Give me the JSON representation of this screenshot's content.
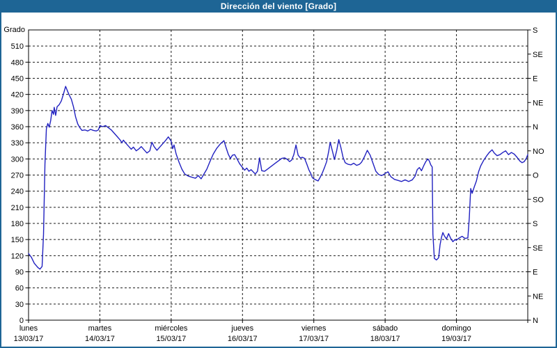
{
  "window": {
    "title": "Dirección del viento [Grado]"
  },
  "colors": {
    "titlebar_bg": "#1e6595",
    "title_text": "#ffffff",
    "border": "#1e6595",
    "background": "#ffffff",
    "frame": "#000000",
    "grid": "#1a1a1a",
    "line": "#2020c0"
  },
  "chart_data": {
    "type": "line",
    "title": "Dirección del viento [Grado]",
    "grid": {
      "style": "dashed",
      "h_step_deg": 30,
      "v_lines": "day boundaries"
    },
    "legend": "none",
    "y_left": {
      "label": "Grado",
      "min": 0,
      "max": 540,
      "tick_step": 30,
      "tick_labels": [
        0,
        30,
        60,
        90,
        120,
        150,
        180,
        210,
        240,
        270,
        300,
        330,
        360,
        390,
        420,
        450,
        480,
        510
      ]
    },
    "y_right": {
      "tick_step": 45,
      "labels": [
        {
          "value": 0,
          "label": "N"
        },
        {
          "value": 45,
          "label": "NE"
        },
        {
          "value": 90,
          "label": "E"
        },
        {
          "value": 135,
          "label": "SE"
        },
        {
          "value": 180,
          "label": "S"
        },
        {
          "value": 225,
          "label": "SO"
        },
        {
          "value": 270,
          "label": "O"
        },
        {
          "value": 315,
          "label": "NO"
        },
        {
          "value": 360,
          "label": "N"
        },
        {
          "value": 405,
          "label": "NE"
        },
        {
          "value": 450,
          "label": "E"
        },
        {
          "value": 495,
          "label": "SE"
        },
        {
          "value": 540,
          "label": "S"
        }
      ]
    },
    "x_axis": {
      "days": [
        {
          "name": "lunes",
          "date": "13/03/17"
        },
        {
          "name": "martes",
          "date": "14/03/17"
        },
        {
          "name": "miércoles",
          "date": "15/03/17"
        },
        {
          "name": "jueves",
          "date": "16/03/17"
        },
        {
          "name": "viernes",
          "date": "17/03/17"
        },
        {
          "name": "sábado",
          "date": "18/03/17"
        },
        {
          "name": "domingo",
          "date": "19/03/17"
        }
      ]
    },
    "series": [
      {
        "name": "Dirección del viento",
        "unit": "Grado",
        "color": "#2020c0",
        "points": [
          [
            0.0,
            124
          ],
          [
            0.04,
            117
          ],
          [
            0.08,
            106
          ],
          [
            0.13,
            98
          ],
          [
            0.16,
            95
          ],
          [
            0.19,
            100
          ],
          [
            0.21,
            160
          ],
          [
            0.23,
            290
          ],
          [
            0.25,
            356
          ],
          [
            0.27,
            366
          ],
          [
            0.29,
            359
          ],
          [
            0.31,
            371
          ],
          [
            0.33,
            390
          ],
          [
            0.35,
            383
          ],
          [
            0.36,
            396
          ],
          [
            0.38,
            381
          ],
          [
            0.4,
            397
          ],
          [
            0.43,
            401
          ],
          [
            0.46,
            408
          ],
          [
            0.49,
            421
          ],
          [
            0.52,
            435
          ],
          [
            0.55,
            425
          ],
          [
            0.57,
            419
          ],
          [
            0.6,
            411
          ],
          [
            0.63,
            397
          ],
          [
            0.66,
            378
          ],
          [
            0.69,
            365
          ],
          [
            0.72,
            358
          ],
          [
            0.75,
            353
          ],
          [
            0.79,
            354
          ],
          [
            0.83,
            352
          ],
          [
            0.87,
            355
          ],
          [
            0.91,
            353
          ],
          [
            0.95,
            352
          ],
          [
            0.98,
            354
          ],
          [
            1.0,
            362
          ],
          [
            1.04,
            360
          ],
          [
            1.08,
            362
          ],
          [
            1.12,
            358
          ],
          [
            1.16,
            354
          ],
          [
            1.2,
            348
          ],
          [
            1.24,
            342
          ],
          [
            1.28,
            336
          ],
          [
            1.31,
            330
          ],
          [
            1.33,
            335
          ],
          [
            1.36,
            330
          ],
          [
            1.4,
            324
          ],
          [
            1.44,
            318
          ],
          [
            1.47,
            322
          ],
          [
            1.51,
            315
          ],
          [
            1.55,
            319
          ],
          [
            1.58,
            323
          ],
          [
            1.62,
            317
          ],
          [
            1.66,
            311
          ],
          [
            1.7,
            315
          ],
          [
            1.73,
            331
          ],
          [
            1.76,
            323
          ],
          [
            1.8,
            316
          ],
          [
            1.84,
            322
          ],
          [
            1.88,
            328
          ],
          [
            1.92,
            334
          ],
          [
            1.96,
            341
          ],
          [
            2.0,
            333
          ],
          [
            2.02,
            319
          ],
          [
            2.04,
            326
          ],
          [
            2.07,
            309
          ],
          [
            2.11,
            294
          ],
          [
            2.15,
            281
          ],
          [
            2.19,
            272
          ],
          [
            2.24,
            268
          ],
          [
            2.29,
            266
          ],
          [
            2.34,
            264
          ],
          [
            2.38,
            269
          ],
          [
            2.42,
            263
          ],
          [
            2.46,
            272
          ],
          [
            2.5,
            281
          ],
          [
            2.54,
            294
          ],
          [
            2.59,
            309
          ],
          [
            2.64,
            320
          ],
          [
            2.69,
            328
          ],
          [
            2.74,
            334
          ],
          [
            2.77,
            321
          ],
          [
            2.8,
            309
          ],
          [
            2.83,
            301
          ],
          [
            2.86,
            307
          ],
          [
            2.89,
            308
          ],
          [
            2.92,
            301
          ],
          [
            2.96,
            291
          ],
          [
            3.0,
            284
          ],
          [
            3.03,
            279
          ],
          [
            3.06,
            283
          ],
          [
            3.09,
            277
          ],
          [
            3.12,
            280
          ],
          [
            3.15,
            276
          ],
          [
            3.18,
            272
          ],
          [
            3.21,
            277
          ],
          [
            3.24,
            302
          ],
          [
            3.27,
            278
          ],
          [
            3.31,
            277
          ],
          [
            3.35,
            281
          ],
          [
            3.39,
            285
          ],
          [
            3.43,
            289
          ],
          [
            3.47,
            293
          ],
          [
            3.51,
            297
          ],
          [
            3.55,
            301
          ],
          [
            3.59,
            302
          ],
          [
            3.63,
            299
          ],
          [
            3.66,
            295
          ],
          [
            3.69,
            298
          ],
          [
            3.72,
            308
          ],
          [
            3.75,
            326
          ],
          [
            3.78,
            307
          ],
          [
            3.81,
            302
          ],
          [
            3.84,
            303
          ],
          [
            3.87,
            301
          ],
          [
            3.9,
            291
          ],
          [
            3.93,
            280
          ],
          [
            3.96,
            272
          ],
          [
            3.98,
            265
          ],
          [
            4.0,
            263
          ],
          [
            4.03,
            261
          ],
          [
            4.06,
            259
          ],
          [
            4.09,
            266
          ],
          [
            4.12,
            274
          ],
          [
            4.15,
            284
          ],
          [
            4.18,
            295
          ],
          [
            4.21,
            315
          ],
          [
            4.23,
            331
          ],
          [
            4.26,
            315
          ],
          [
            4.29,
            299
          ],
          [
            4.32,
            315
          ],
          [
            4.35,
            336
          ],
          [
            4.38,
            321
          ],
          [
            4.41,
            303
          ],
          [
            4.44,
            293
          ],
          [
            4.48,
            290
          ],
          [
            4.52,
            289
          ],
          [
            4.56,
            292
          ],
          [
            4.6,
            288
          ],
          [
            4.64,
            290
          ],
          [
            4.67,
            294
          ],
          [
            4.71,
            304
          ],
          [
            4.75,
            316
          ],
          [
            4.79,
            307
          ],
          [
            4.83,
            292
          ],
          [
            4.87,
            277
          ],
          [
            4.91,
            271
          ],
          [
            4.95,
            269
          ],
          [
            4.98,
            271
          ],
          [
            5.0,
            273
          ],
          [
            5.04,
            276
          ],
          [
            5.08,
            267
          ],
          [
            5.13,
            262
          ],
          [
            5.18,
            260
          ],
          [
            5.23,
            258
          ],
          [
            5.28,
            261
          ],
          [
            5.33,
            258
          ],
          [
            5.38,
            261
          ],
          [
            5.42,
            268
          ],
          [
            5.45,
            280
          ],
          [
            5.48,
            284
          ],
          [
            5.51,
            278
          ],
          [
            5.54,
            287
          ],
          [
            5.57,
            295
          ],
          [
            5.6,
            300
          ],
          [
            5.62,
            296
          ],
          [
            5.64,
            289
          ],
          [
            5.66,
            285
          ],
          [
            5.67,
            160
          ],
          [
            5.69,
            115
          ],
          [
            5.72,
            112
          ],
          [
            5.75,
            116
          ],
          [
            5.77,
            140
          ],
          [
            5.79,
            154
          ],
          [
            5.81,
            163
          ],
          [
            5.83,
            157
          ],
          [
            5.86,
            151
          ],
          [
            5.89,
            161
          ],
          [
            5.92,
            152
          ],
          [
            5.95,
            146
          ],
          [
            5.98,
            150
          ],
          [
            6.0,
            149
          ],
          [
            6.04,
            153
          ],
          [
            6.08,
            156
          ],
          [
            6.12,
            152
          ],
          [
            6.16,
            153
          ],
          [
            6.18,
            190
          ],
          [
            6.2,
            245
          ],
          [
            6.22,
            236
          ],
          [
            6.25,
            248
          ],
          [
            6.28,
            259
          ],
          [
            6.31,
            276
          ],
          [
            6.34,
            287
          ],
          [
            6.38,
            297
          ],
          [
            6.42,
            305
          ],
          [
            6.46,
            312
          ],
          [
            6.5,
            317
          ],
          [
            6.53,
            311
          ],
          [
            6.57,
            306
          ],
          [
            6.61,
            308
          ],
          [
            6.65,
            312
          ],
          [
            6.69,
            315
          ],
          [
            6.73,
            308
          ],
          [
            6.77,
            312
          ],
          [
            6.81,
            309
          ],
          [
            6.85,
            303
          ],
          [
            6.89,
            296
          ],
          [
            6.92,
            293
          ],
          [
            6.95,
            295
          ],
          [
            6.98,
            301
          ],
          [
            7.0,
            308
          ]
        ]
      }
    ]
  }
}
